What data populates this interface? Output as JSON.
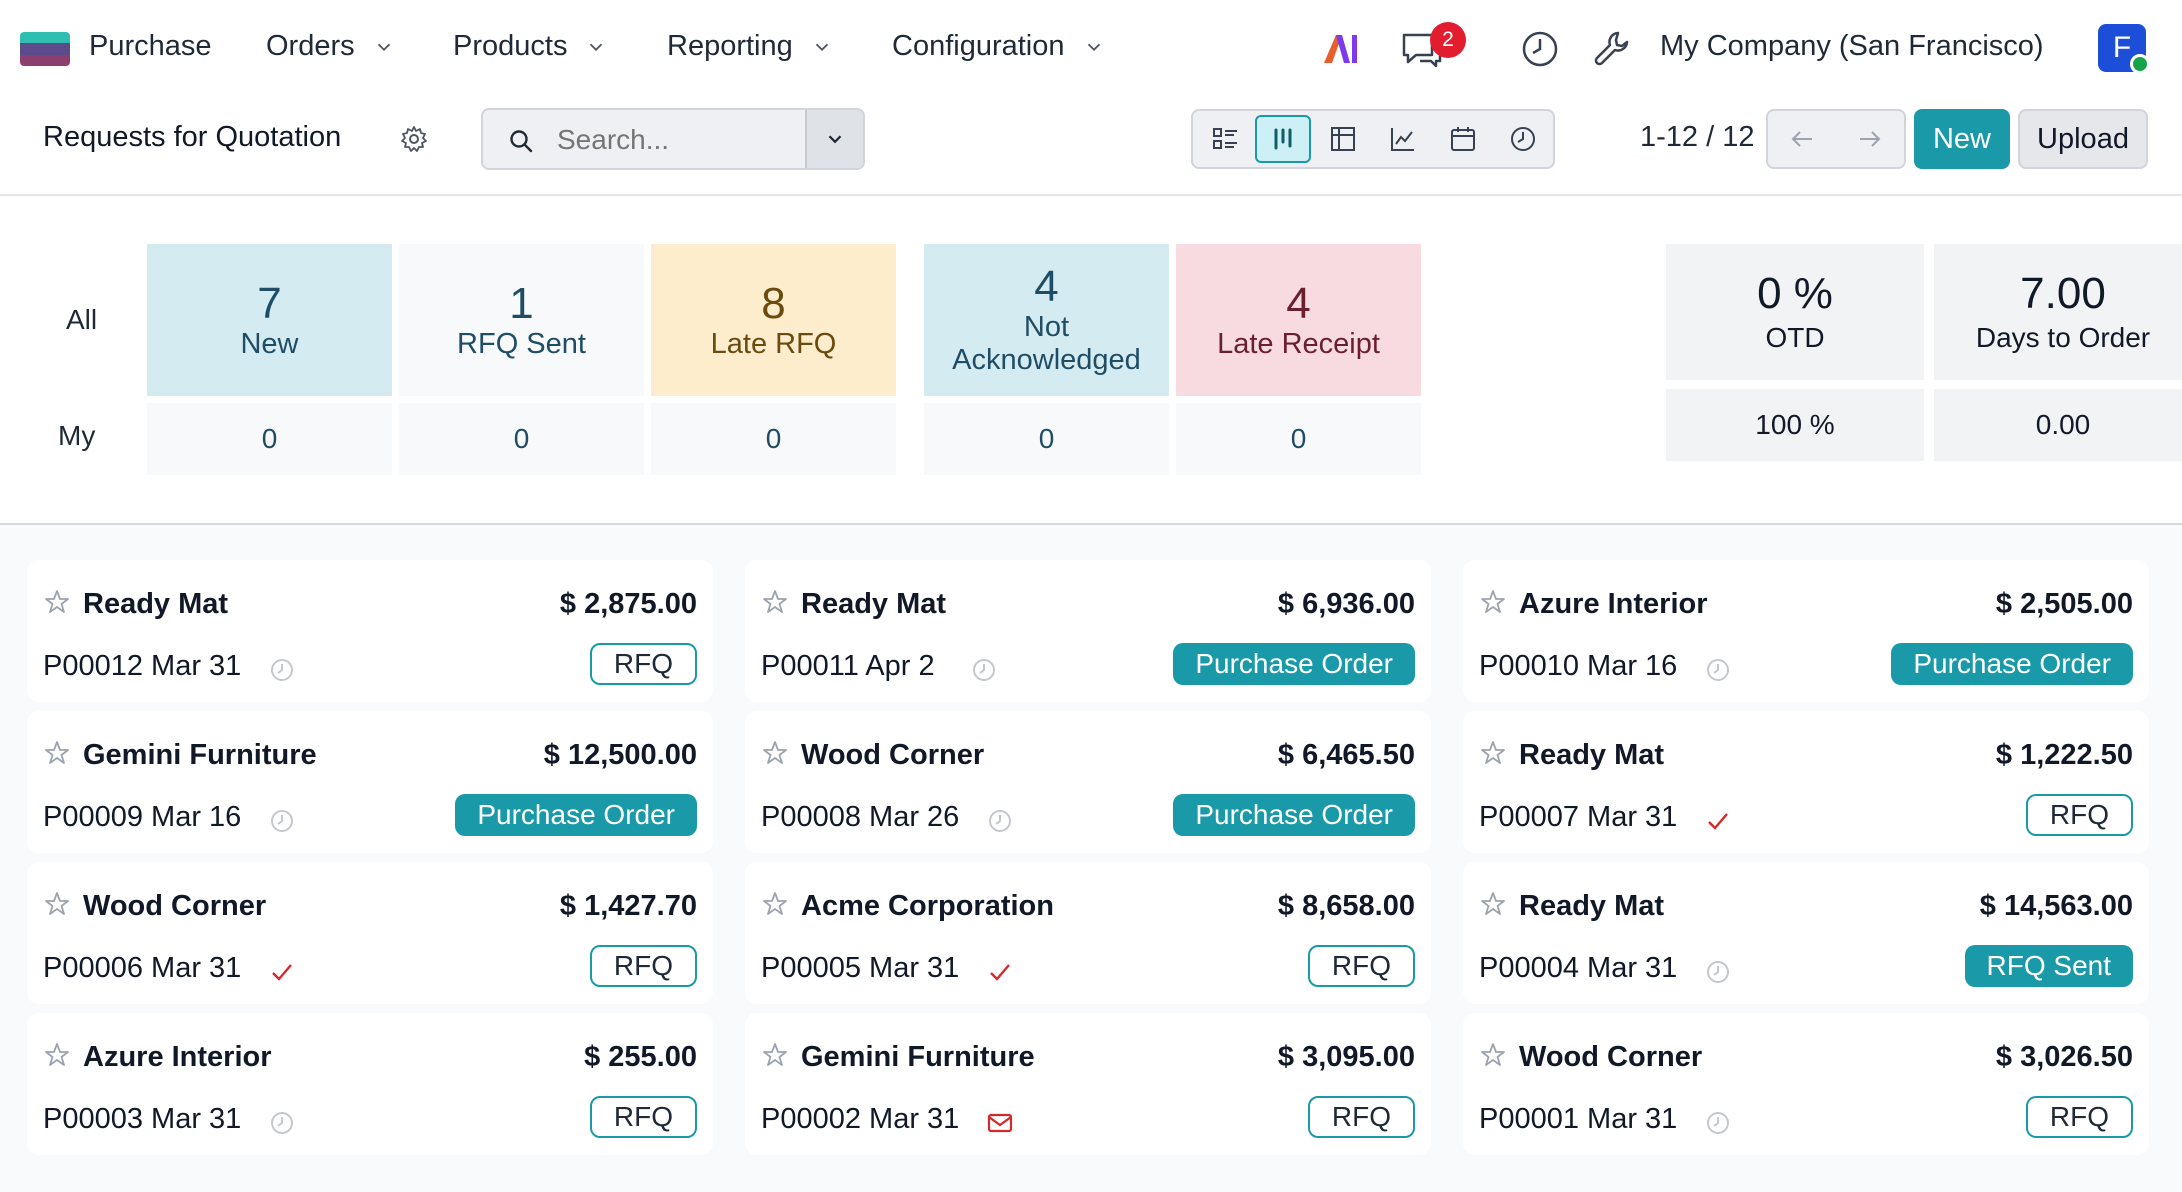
{
  "navbar": {
    "app_name": "Purchase",
    "menus": [
      "Orders",
      "Products",
      "Reporting",
      "Configuration"
    ],
    "messages_badge": "2",
    "company": "My Company (San Francisco)",
    "avatar_letter": "F"
  },
  "control": {
    "title": "Requests for Quotation",
    "search_placeholder": "Search...",
    "pager": "1-12 / 12",
    "new_label": "New",
    "upload_label": "Upload",
    "views": [
      "list",
      "kanban",
      "pivot",
      "graph",
      "calendar",
      "activity"
    ],
    "active_view": "kanban"
  },
  "dashboard": {
    "row_all": "All",
    "row_my": "My",
    "tiles": [
      {
        "value": "7",
        "label": "New",
        "my": "0"
      },
      {
        "value": "1",
        "label": "RFQ Sent",
        "my": "0"
      },
      {
        "value": "8",
        "label": "Late RFQ",
        "my": "0"
      },
      {
        "value": "4",
        "label": "Not Acknowledged",
        "my": "0"
      },
      {
        "value": "4",
        "label": "Late Receipt",
        "my": "0"
      }
    ],
    "kpis": [
      {
        "value": "0 %",
        "label": "OTD",
        "my": "100 %"
      },
      {
        "value": "7.00",
        "label": "Days to Order",
        "my": "0.00"
      }
    ]
  },
  "colors": {
    "accent": "#1a9aa8",
    "tile_new": "#d4ecf1",
    "tile_sent": "#f8f9fa",
    "tile_late_rfq": "#fdedcd",
    "tile_not_ack": "#d4ecf1",
    "tile_late_receipt": "#f7dbe0",
    "activity_done": "#d42a2a"
  },
  "cards": [
    {
      "partner": "Ready Mat",
      "amount": "$ 2,875.00",
      "ref": "P00012 Mar 31",
      "activity": "clock",
      "state": "RFQ",
      "state_kind": "rfq"
    },
    {
      "partner": "Ready Mat",
      "amount": "$ 6,936.00",
      "ref": "P00011 Apr 2",
      "activity": "clock",
      "state": "Purchase Order",
      "state_kind": "po"
    },
    {
      "partner": "Azure Interior",
      "amount": "$ 2,505.00",
      "ref": "P00010 Mar 16",
      "activity": "clock",
      "state": "Purchase Order",
      "state_kind": "po"
    },
    {
      "partner": "Gemini Furniture",
      "amount": "$ 12,500.00",
      "ref": "P00009 Mar 16",
      "activity": "clock",
      "state": "Purchase Order",
      "state_kind": "po"
    },
    {
      "partner": "Wood Corner",
      "amount": "$ 6,465.50",
      "ref": "P00008 Mar 26",
      "activity": "clock",
      "state": "Purchase Order",
      "state_kind": "po"
    },
    {
      "partner": "Ready Mat",
      "amount": "$ 1,222.50",
      "ref": "P00007 Mar 31",
      "activity": "check",
      "state": "RFQ",
      "state_kind": "rfq"
    },
    {
      "partner": "Wood Corner",
      "amount": "$ 1,427.70",
      "ref": "P00006 Mar 31",
      "activity": "check",
      "state": "RFQ",
      "state_kind": "rfq"
    },
    {
      "partner": "Acme Corporation",
      "amount": "$ 8,658.00",
      "ref": "P00005 Mar 31",
      "activity": "check",
      "state": "RFQ",
      "state_kind": "rfq"
    },
    {
      "partner": "Ready Mat",
      "amount": "$ 14,563.00",
      "ref": "P00004 Mar 31",
      "activity": "clock",
      "state": "RFQ Sent",
      "state_kind": "sent"
    },
    {
      "partner": "Azure Interior",
      "amount": "$ 255.00",
      "ref": "P00003 Mar 31",
      "activity": "clock",
      "state": "RFQ",
      "state_kind": "rfq"
    },
    {
      "partner": "Gemini Furniture",
      "amount": "$ 3,095.00",
      "ref": "P00002 Mar 31",
      "activity": "envelope",
      "state": "RFQ",
      "state_kind": "rfq"
    },
    {
      "partner": "Wood Corner",
      "amount": "$ 3,026.50",
      "ref": "P00001 Mar 31",
      "activity": "clock",
      "state": "RFQ",
      "state_kind": "rfq"
    }
  ]
}
